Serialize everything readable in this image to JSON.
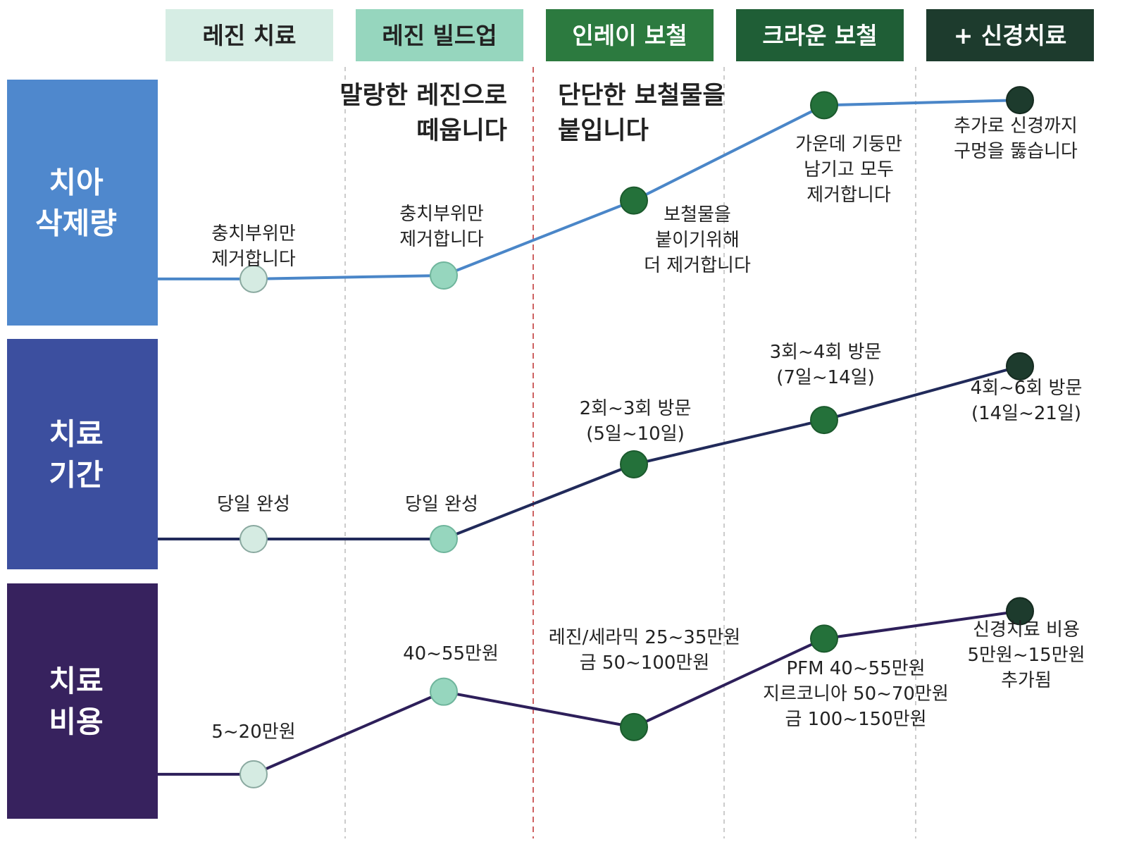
{
  "colors": {
    "stage_colors": [
      "#d6ede4",
      "#96d6be",
      "#2c7a3f",
      "#1f5e36",
      "#1d3b2d"
    ],
    "stage_text": [
      "#222222",
      "#222222",
      "#ffffff",
      "#ffffff",
      "#ffffff"
    ],
    "row_colors": [
      "#4f88cd",
      "#3c4f9f",
      "#37225e"
    ],
    "row_lines": [
      "#4a86c8",
      "#212a5a",
      "#2d1f5a"
    ],
    "divider_dashed": "#c0c0c0",
    "divider_red": "#c85050"
  },
  "stages": [
    "레진 치료",
    "레진 빌드업",
    "인레이 보철",
    "크라운 보철",
    "+ 신경치료"
  ],
  "notes": {
    "resin": [
      "말랑한 레진으로",
      "떼웁니다"
    ],
    "prosthesis": [
      "단단한 보철물을",
      "붙입니다"
    ]
  },
  "rows": [
    {
      "label": [
        "치아",
        "삭제량"
      ],
      "values": [
        1,
        1.2,
        5.6,
        11.2,
        11.5
      ],
      "point_labels": [
        [
          "충치부위만",
          "제거합니다"
        ],
        [
          "충치부위만",
          "제거합니다"
        ],
        [
          "보철물을",
          "붙이기위해",
          "더 제거합니다"
        ],
        [
          "가운데 기둥만",
          "남기고 모두",
          "제거합니다"
        ],
        [
          "추가로 신경까지",
          "구멍을 뚫습니다"
        ]
      ]
    },
    {
      "label": [
        "치료",
        "기간"
      ],
      "values": [
        0,
        0,
        3.2,
        5.1,
        7.4
      ],
      "point_labels": [
        [
          "당일 완성"
        ],
        [
          "당일 완성"
        ],
        [
          "2회~3회 방문",
          "(5일~10일)"
        ],
        [
          "3회~4회 방문",
          "(7일~14일)"
        ],
        [
          "4회~6회 방문",
          "(14일~21일)"
        ]
      ]
    },
    {
      "label": [
        "치료",
        "비용"
      ],
      "values": [
        0.4,
        4.6,
        2.8,
        7.3,
        8.7
      ],
      "point_labels": [
        [
          "5~20만원"
        ],
        [
          "40~55만원"
        ],
        [
          "레진/세라믹 25~35만원",
          "금 50~100만원"
        ],
        [
          "PFM 40~55만원",
          "지르코니아 50~70만원",
          "금 100~150만원"
        ],
        [
          "신경치료 비용",
          "5만원~15만원",
          "추가됨"
        ]
      ]
    }
  ]
}
